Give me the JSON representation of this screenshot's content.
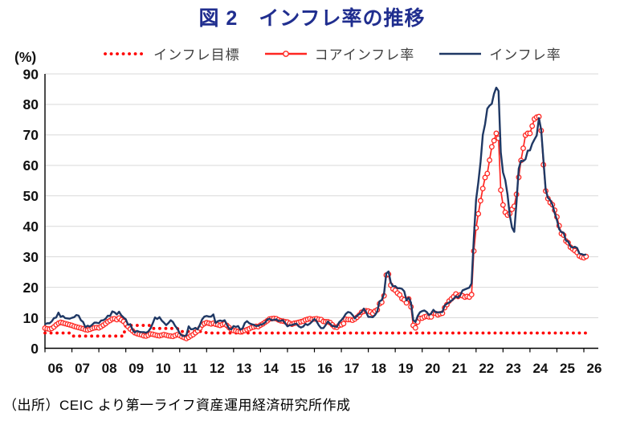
{
  "figure": {
    "title": "図 2　インフレ率の推移",
    "source": "（出所）CEIC より第一ライフ資産運用経済研究所作成"
  },
  "colors": {
    "title": "#202E8F",
    "target_red": "#FF0000",
    "core_red": "#FF2621",
    "headline_navy": "#1F3864",
    "grid": "#D9D9D9",
    "axis": "#000000",
    "tick_text": "#111111",
    "legend_text": "#404040"
  },
  "chart_data": {
    "type": "line",
    "title": "図 2　インフレ率の推移",
    "ylabel_unit": "(%)",
    "ylim": [
      0,
      90
    ],
    "ytick_labels": [
      "0",
      "10",
      "20",
      "30",
      "40",
      "50",
      "60",
      "70",
      "80",
      "90"
    ],
    "x_labels": [
      "06",
      "07",
      "08",
      "09",
      "10",
      "11",
      "12",
      "13",
      "14",
      "15",
      "16",
      "17",
      "18",
      "19",
      "20",
      "21",
      "22",
      "23",
      "24",
      "25",
      "26"
    ],
    "x_range_years": [
      2006,
      2026.2
    ],
    "frequency": "monthly (2006-01 to 2026-02)",
    "grid": "horizontal only",
    "legend_position": "top",
    "series": [
      {
        "name": "インフレ目標",
        "style": "dotted",
        "color": "#FF0000",
        "resolution": "annual step (2006-2026)",
        "values": [
          5,
          4,
          4,
          7.5,
          6.5,
          5.5,
          5,
          5,
          5,
          5,
          5,
          5,
          5,
          5,
          5,
          5,
          5,
          5,
          5,
          5,
          5
        ]
      },
      {
        "name": "コアインフレ率",
        "style": "solid with open circle markers",
        "color": "#FF2621",
        "resolution": "monthly",
        "values": [
          6.6,
          6.4,
          6.3,
          6.5,
          7.0,
          7.7,
          8.2,
          8.5,
          8.3,
          8.1,
          7.9,
          7.7,
          7.5,
          7.2,
          7.0,
          6.8,
          6.6,
          6.4,
          6.1,
          6.0,
          6.2,
          6.5,
          6.7,
          6.8,
          6.7,
          7.1,
          7.6,
          8.1,
          8.7,
          9.1,
          9.6,
          9.7,
          9.4,
          9.9,
          9.3,
          8.8,
          8.0,
          7.1,
          6.3,
          5.7,
          5.1,
          4.8,
          4.6,
          4.4,
          4.1,
          4.0,
          4.3,
          4.7,
          4.6,
          4.4,
          4.2,
          4.1,
          4.3,
          4.5,
          4.3,
          4.1,
          4.0,
          3.9,
          4.2,
          4.5,
          4.2,
          3.8,
          3.5,
          3.2,
          3.6,
          4.1,
          4.5,
          5.1,
          5.7,
          6.6,
          7.6,
          8.1,
          8.4,
          8.2,
          8.0,
          8.2,
          7.9,
          7.7,
          7.5,
          7.8,
          8.0,
          7.5,
          6.8,
          6.1,
          5.8,
          5.7,
          5.5,
          5.4,
          5.6,
          5.8,
          6.1,
          6.4,
          6.8,
          7.0,
          7.2,
          7.1,
          7.6,
          8.0,
          8.5,
          9.0,
          9.6,
          9.7,
          9.8,
          9.7,
          9.3,
          9.0,
          8.9,
          8.7,
          8.6,
          8.2,
          7.9,
          8.2,
          8.3,
          8.5,
          8.7,
          8.9,
          9.3,
          9.5,
          9.7,
          9.5,
          9.6,
          9.7,
          9.5,
          9.4,
          8.8,
          8.7,
          8.7,
          8.4,
          7.7,
          7.0,
          6.9,
          7.5,
          7.7,
          8.1,
          9.5,
          9.4,
          9.4,
          9.2,
          9.6,
          10.2,
          10.9,
          11.8,
          12.1,
          12.3,
          12.2,
          11.9,
          11.4,
          12.2,
          12.6,
          14.6,
          15.1,
          17.2,
          24.0,
          24.3,
          20.7,
          19.5,
          19.0,
          18.1,
          17.5,
          16.3,
          15.9,
          14.9,
          16.2,
          13.6,
          7.5,
          6.7,
          8.6,
          9.8,
          9.9,
          10.3,
          10.5,
          10.3,
          10.3,
          11.6,
          11.4,
          11.0,
          11.3,
          11.5,
          13.3,
          14.3,
          15.5,
          16.2,
          16.9,
          17.8,
          17.0,
          17.5,
          17.2,
          16.8,
          17.0,
          16.8,
          17.6,
          31.9,
          39.5,
          44.1,
          48.4,
          52.4,
          56.0,
          57.3,
          61.7,
          66.1,
          68.1,
          70.5,
          68.9,
          51.9,
          47.0,
          44.6,
          43.7,
          44.2,
          45.6,
          46.6,
          50.5,
          56.1,
          61.6,
          65.6,
          69.9,
          70.5,
          70.5,
          72.9,
          75.2,
          75.8,
          76.0,
          71.4,
          60.2,
          51.6,
          49.1,
          47.8,
          47.1,
          45.3,
          43.1,
          40.2,
          37.6,
          37.1,
          35.2,
          34.6,
          33.2,
          32.6,
          32.0,
          31.4,
          30.3,
          29.9,
          29.7,
          30.1
        ]
      },
      {
        "name": "インフレ率",
        "style": "solid",
        "color": "#1F3864",
        "resolution": "monthly",
        "values": [
          7.9,
          8.2,
          8.2,
          8.8,
          9.9,
          10.1,
          11.7,
          10.3,
          10.6,
          9.9,
          9.8,
          9.7,
          10.0,
          10.2,
          10.9,
          10.7,
          9.2,
          8.6,
          6.9,
          7.4,
          7.1,
          7.7,
          8.4,
          8.4,
          8.2,
          9.1,
          9.2,
          9.7,
          10.7,
          10.6,
          12.1,
          11.8,
          11.1,
          12.0,
          10.8,
          10.1,
          9.5,
          7.7,
          7.9,
          6.1,
          5.2,
          5.7,
          5.4,
          5.3,
          5.3,
          5.1,
          5.5,
          6.5,
          8.2,
          10.1,
          9.6,
          10.2,
          9.1,
          8.4,
          7.6,
          8.3,
          9.2,
          8.6,
          7.3,
          6.4,
          4.9,
          4.2,
          4.0,
          4.3,
          7.2,
          6.2,
          6.3,
          6.7,
          6.2,
          7.7,
          9.5,
          10.4,
          10.6,
          10.4,
          10.4,
          11.1,
          8.3,
          8.9,
          9.1,
          8.9,
          9.2,
          7.8,
          6.4,
          6.2,
          7.3,
          7.0,
          7.3,
          6.1,
          6.5,
          8.3,
          8.9,
          8.2,
          7.9,
          7.7,
          7.3,
          7.4,
          7.8,
          7.9,
          8.4,
          9.4,
          9.7,
          9.2,
          9.3,
          9.5,
          8.9,
          9.0,
          9.2,
          8.2,
          7.2,
          7.6,
          7.6,
          7.9,
          8.1,
          7.2,
          6.8,
          7.1,
          8.0,
          7.6,
          8.1,
          8.8,
          9.6,
          8.8,
          7.5,
          6.6,
          6.6,
          7.6,
          8.8,
          8.0,
          7.3,
          7.2,
          7.0,
          8.5,
          9.2,
          10.1,
          11.3,
          11.9,
          11.7,
          10.9,
          9.8,
          10.7,
          11.2,
          11.9,
          13.0,
          11.9,
          10.3,
          10.3,
          10.2,
          10.9,
          12.1,
          15.4,
          15.8,
          17.9,
          24.5,
          25.2,
          21.6,
          20.3,
          20.4,
          19.7,
          19.7,
          19.5,
          18.7,
          15.7,
          16.6,
          15.0,
          9.3,
          8.6,
          10.6,
          11.8,
          12.2,
          12.4,
          11.9,
          10.9,
          11.4,
          12.6,
          11.8,
          11.8,
          11.8,
          11.9,
          14.0,
          14.6,
          15.0,
          15.6,
          16.2,
          17.1,
          16.6,
          17.5,
          19.0,
          19.3,
          19.6,
          19.9,
          21.3,
          36.1,
          48.7,
          54.4,
          61.1,
          70.0,
          73.5,
          78.6,
          79.6,
          80.2,
          83.5,
          85.5,
          84.4,
          64.3,
          57.7,
          55.2,
          50.5,
          43.7,
          39.6,
          38.2,
          47.8,
          58.9,
          61.5,
          61.4,
          62.0,
          64.8,
          64.9,
          67.1,
          68.5,
          69.8,
          75.5,
          71.6,
          61.8,
          52.0,
          49.4,
          48.6,
          47.1,
          44.4,
          42.1,
          39.1,
          38.1,
          37.9,
          35.4,
          35.0,
          33.5,
          33.0,
          33.3,
          32.9,
          31.1,
          30.9,
          30.6,
          30.8
        ]
      }
    ]
  }
}
